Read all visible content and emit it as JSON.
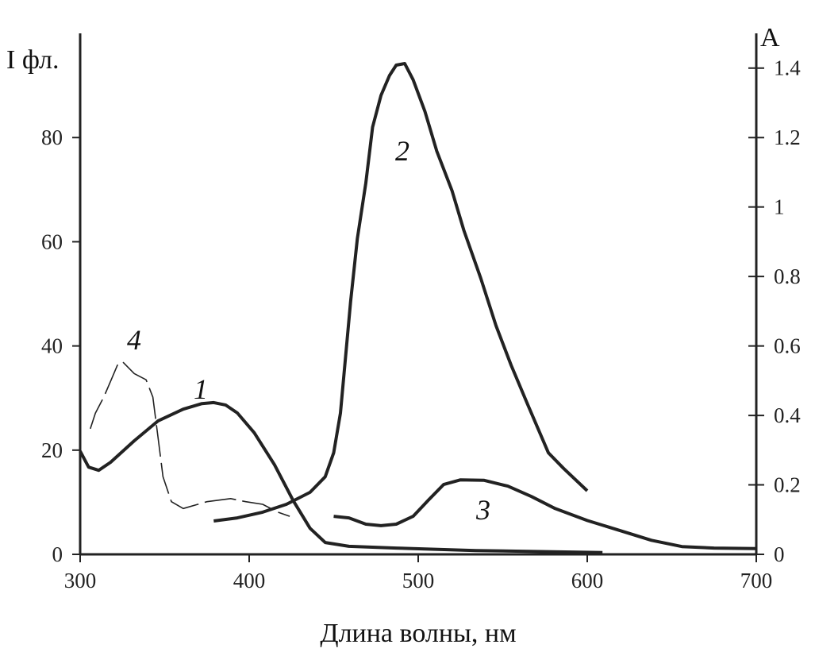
{
  "chart_data": {
    "type": "line",
    "title": "",
    "xlabel": "Длина волны, нм",
    "ylabel_left": "I фл.",
    "ylabel_right": "A",
    "xlim": [
      300,
      700
    ],
    "ylim_left": [
      0,
      100
    ],
    "ylim_right": [
      0,
      1.5
    ],
    "x_ticks": [
      "300",
      "400",
      "500",
      "600",
      "700"
    ],
    "y_ticks_left": [
      "0",
      "20",
      "40",
      "60",
      "80"
    ],
    "y_ticks_right": [
      "0",
      "0.2",
      "0.4",
      "0.6",
      "0.8",
      "1",
      "1.2",
      "1.4"
    ],
    "grid": false,
    "color": "#222222",
    "series": [
      {
        "name": "1",
        "axis": "right",
        "style": "solid-thick",
        "x": [
          300,
          305,
          311,
          318,
          332,
          346,
          361,
          372,
          379,
          386,
          393,
          403,
          415,
          426,
          436,
          445,
          459,
          487,
          534,
          609
        ],
        "y": [
          0.297,
          0.251,
          0.242,
          0.265,
          0.327,
          0.384,
          0.418,
          0.434,
          0.437,
          0.43,
          0.407,
          0.35,
          0.258,
          0.155,
          0.075,
          0.034,
          0.023,
          0.018,
          0.011,
          0.005
        ]
      },
      {
        "name": "2",
        "axis": "left",
        "style": "solid-thick",
        "x": [
          379,
          393,
          408,
          422,
          436,
          445,
          450,
          454,
          457,
          460,
          464,
          469,
          473,
          478,
          483,
          487,
          492,
          497,
          504,
          511,
          520,
          527,
          537,
          546,
          555,
          565,
          577,
          586,
          600
        ],
        "y": [
          6.4,
          7.0,
          8.1,
          9.6,
          11.9,
          14.9,
          19.5,
          27.1,
          37.8,
          48.5,
          60.6,
          71.3,
          82.0,
          88.1,
          91.9,
          93.9,
          94.2,
          91.1,
          85.0,
          77.4,
          69.8,
          62.2,
          53.0,
          43.9,
          36.3,
          28.6,
          19.5,
          16.5,
          12.2
        ]
      },
      {
        "name": "3",
        "axis": "left",
        "style": "solid-thick",
        "x": [
          450,
          459,
          469,
          478,
          487,
          497,
          506,
          515,
          525,
          539,
          553,
          567,
          581,
          600,
          619,
          638,
          656,
          675,
          700
        ],
        "y": [
          7.3,
          7.0,
          5.8,
          5.5,
          5.8,
          7.3,
          10.4,
          13.4,
          14.3,
          14.2,
          13.1,
          11.1,
          8.8,
          6.5,
          4.6,
          2.7,
          1.5,
          1.2,
          1.1
        ]
      },
      {
        "name": "4",
        "axis": "left",
        "style": "dashed-thin",
        "x": [
          306,
          309,
          314,
          318,
          322,
          325,
          332,
          339,
          343,
          346,
          349,
          354,
          361,
          375,
          389,
          398,
          408,
          417,
          424
        ],
        "y": [
          24.1,
          27.1,
          30.2,
          33.2,
          36.3,
          37.0,
          34.7,
          33.5,
          30.2,
          22.6,
          14.9,
          10.1,
          8.8,
          10.1,
          10.7,
          10.1,
          9.6,
          8.1,
          7.3
        ]
      }
    ],
    "annotations": [
      "1",
      "2",
      "3",
      "4"
    ]
  }
}
